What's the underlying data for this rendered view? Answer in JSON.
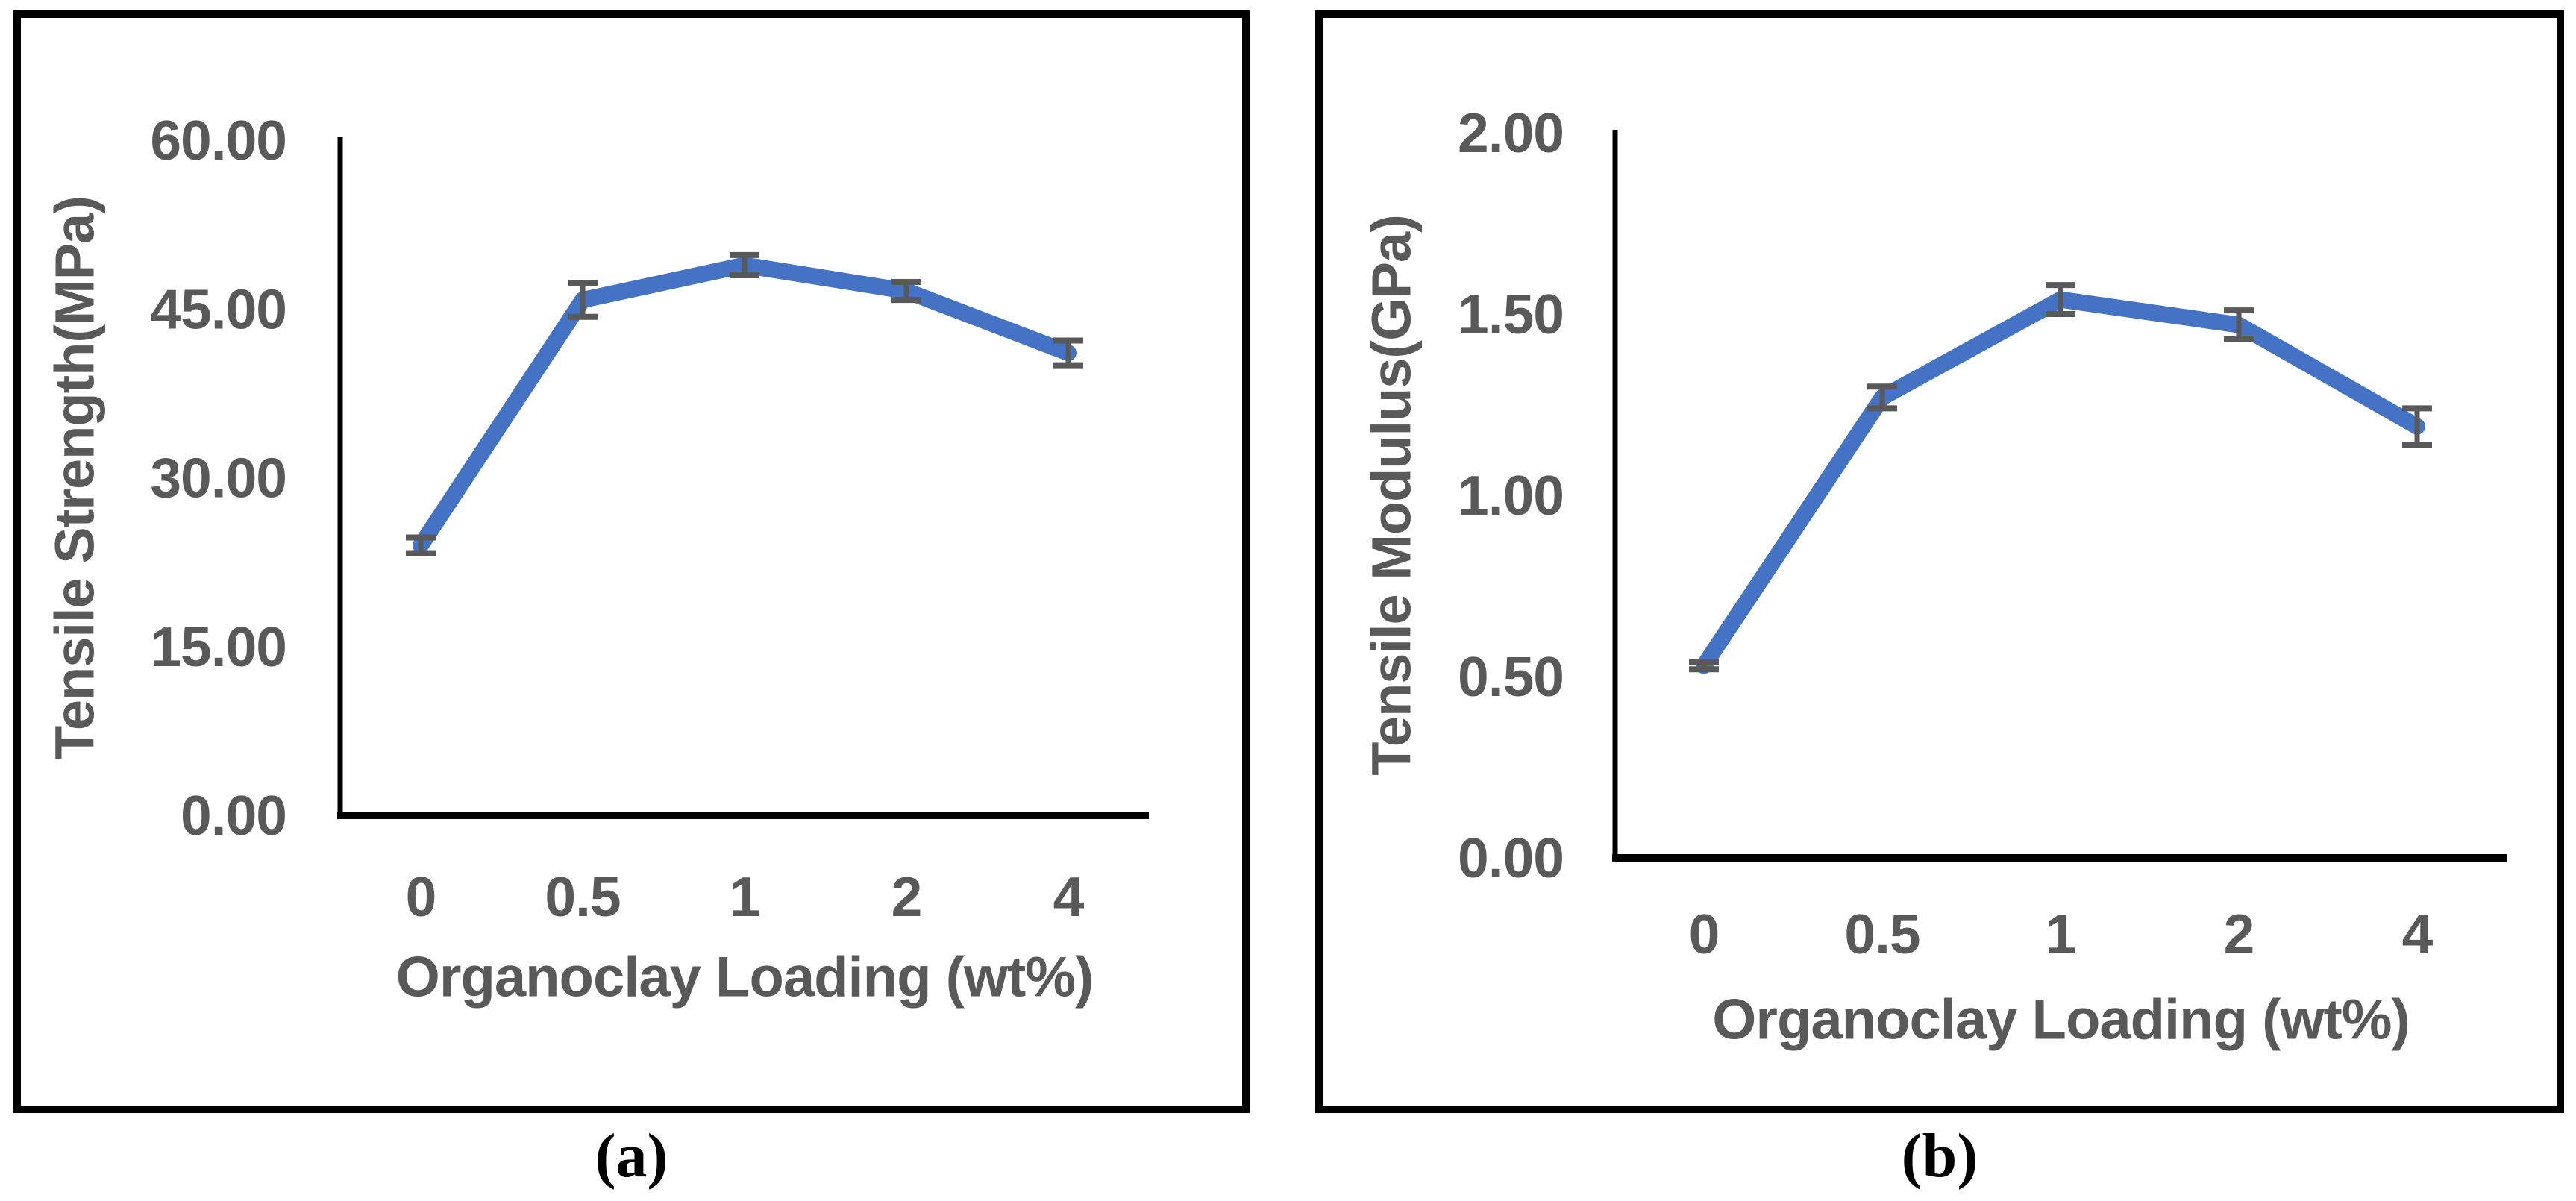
{
  "chart_data": [
    {
      "type": "line",
      "caption": "(a)",
      "xlabel": "Organoclay Loading (wt%)",
      "ylabel": "Tensile Strength(MPa)",
      "categories": [
        "0",
        "0.5",
        "1",
        "2",
        "4"
      ],
      "series": [
        {
          "name": "Tensile Strength",
          "values": [
            24.0,
            45.8,
            48.9,
            46.6,
            41.1
          ],
          "error_bars": [
            0.7,
            1.5,
            0.9,
            0.8,
            1.1
          ]
        }
      ],
      "ylim": [
        0,
        60
      ],
      "ytick_values": [
        60,
        45,
        30,
        15,
        0
      ],
      "ytick_labels": [
        "60.00",
        "45.00",
        "30.00",
        "15.00",
        "0.00"
      ],
      "grid": false,
      "legend": "none"
    },
    {
      "type": "line",
      "caption": "(b)",
      "xlabel": "Organoclay Loading (wt%)",
      "ylabel": "Tensile Modulus(GPa)",
      "categories": [
        "0",
        "0.5",
        "1",
        "2",
        "4"
      ],
      "series": [
        {
          "name": "Tensile Modulus",
          "values": [
            0.53,
            1.27,
            1.54,
            1.47,
            1.19
          ],
          "error_bars": [
            0.01,
            0.03,
            0.04,
            0.04,
            0.05
          ]
        }
      ],
      "ylim": [
        0,
        2
      ],
      "ytick_values": [
        2,
        1.5,
        1,
        0.5,
        0
      ],
      "ytick_labels": [
        "2.00",
        "1.50",
        "1.00",
        "0.50",
        "0.00"
      ],
      "grid": false,
      "legend": "none"
    }
  ],
  "colors": {
    "line": "#4472C4",
    "error_bar": "#595959",
    "text": "#595959",
    "axis": "#000000",
    "panel_border": "#000000",
    "background": "#ffffff"
  }
}
